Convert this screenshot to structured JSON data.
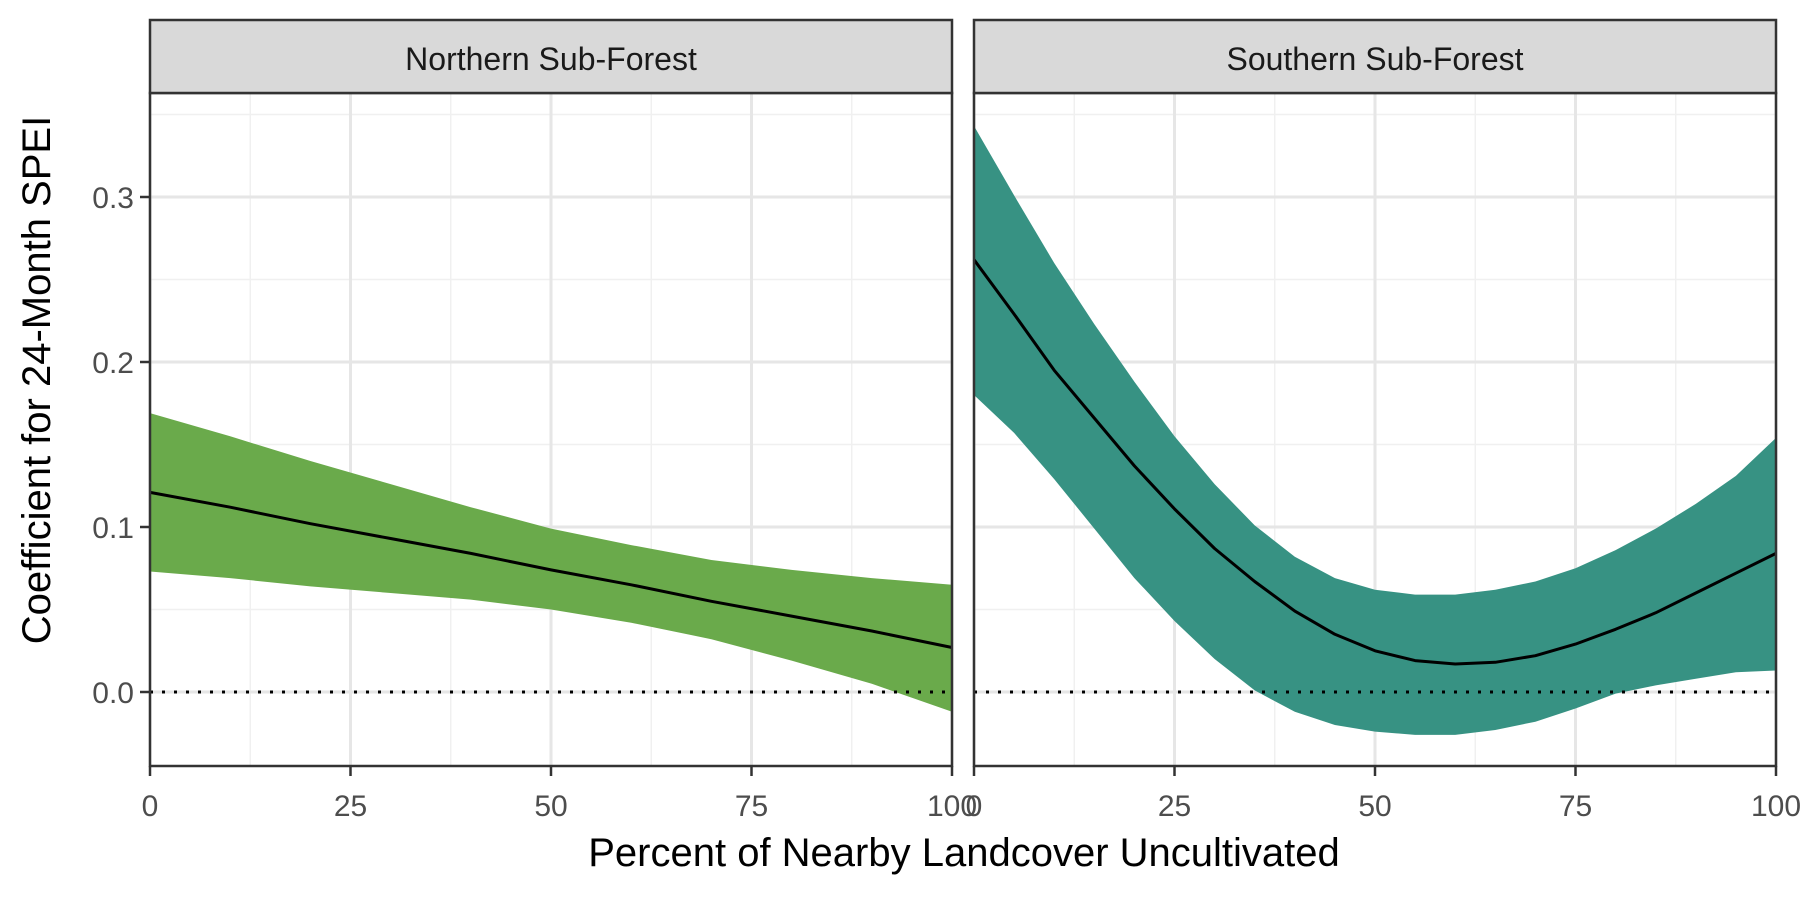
{
  "chart_data": {
    "type": "area",
    "ylabel": "Coefficient for 24-Month SPEI",
    "xlabel": "Percent of Nearby Landcover Uncultivated",
    "xlim": [
      0,
      100
    ],
    "ylim": [
      -0.045,
      0.36
    ],
    "x_ticks": [
      0,
      25,
      50,
      75,
      100
    ],
    "y_ticks": [
      0.0,
      0.1,
      0.2,
      0.3
    ],
    "x_tick_labels": [
      "0",
      "25",
      "50",
      "75",
      "100"
    ],
    "y_tick_labels": [
      "0.0",
      "0.1",
      "0.2",
      "0.3"
    ],
    "reference_line": {
      "y": 0.0,
      "style": "dotted"
    },
    "grid": true,
    "panels": [
      {
        "title": "Northern Sub-Forest",
        "color": "#6aaa4b",
        "x": [
          0,
          10,
          20,
          30,
          40,
          50,
          60,
          70,
          80,
          90,
          100
        ],
        "y": [
          0.121,
          0.112,
          0.102,
          0.093,
          0.084,
          0.074,
          0.065,
          0.055,
          0.046,
          0.037,
          0.027
        ],
        "lower": [
          0.073,
          0.069,
          0.064,
          0.06,
          0.056,
          0.05,
          0.042,
          0.032,
          0.019,
          0.005,
          -0.012
        ],
        "upper": [
          0.169,
          0.155,
          0.14,
          0.126,
          0.112,
          0.099,
          0.089,
          0.08,
          0.074,
          0.069,
          0.065
        ]
      },
      {
        "title": "Southern Sub-Forest",
        "color": "#379283",
        "x": [
          0,
          5,
          10,
          15,
          20,
          25,
          30,
          35,
          40,
          45,
          50,
          55,
          60,
          65,
          70,
          75,
          80,
          85,
          90,
          95,
          100
        ],
        "y": [
          0.262,
          0.229,
          0.195,
          0.166,
          0.137,
          0.111,
          0.087,
          0.067,
          0.049,
          0.035,
          0.025,
          0.019,
          0.017,
          0.018,
          0.022,
          0.029,
          0.038,
          0.048,
          0.06,
          0.072,
          0.084
        ],
        "lower": [
          0.18,
          0.157,
          0.129,
          0.099,
          0.069,
          0.043,
          0.02,
          0.001,
          -0.012,
          -0.02,
          -0.024,
          -0.026,
          -0.026,
          -0.023,
          -0.018,
          -0.01,
          -0.001,
          0.004,
          0.008,
          0.012,
          0.013
        ],
        "upper": [
          0.343,
          0.301,
          0.26,
          0.223,
          0.188,
          0.155,
          0.126,
          0.101,
          0.082,
          0.069,
          0.062,
          0.059,
          0.059,
          0.062,
          0.067,
          0.075,
          0.086,
          0.099,
          0.114,
          0.131,
          0.154
        ]
      }
    ]
  }
}
